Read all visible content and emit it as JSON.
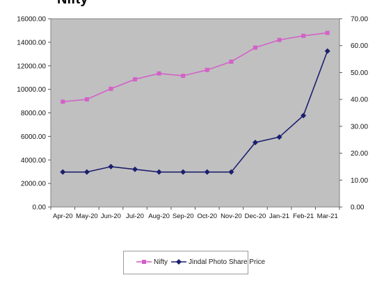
{
  "heading": "Nifty",
  "chart_data": {
    "type": "line",
    "categories": [
      "Apr-20",
      "May-20",
      "Jun-20",
      "Jul-20",
      "Aug-20",
      "Sep-20",
      "Oct-20",
      "Nov-20",
      "Dec-20",
      "Jan-21",
      "Feb-21",
      "Mar-21"
    ],
    "series": [
      {
        "name": "Nifty",
        "axis": "left",
        "color": "#d461c8",
        "values": [
          8950,
          9150,
          10050,
          10850,
          11350,
          11150,
          11650,
          12350,
          13550,
          14200,
          14550,
          14800
        ]
      },
      {
        "name": "Jindal Photo Share Price",
        "axis": "right",
        "color": "#1c1f6e",
        "values": [
          13,
          13,
          15,
          14,
          13,
          13,
          13,
          13,
          24,
          26,
          34,
          58
        ]
      }
    ],
    "y_left": {
      "min": 0,
      "max": 16000,
      "step": 2000,
      "ticks": [
        "0.00",
        "2000.00",
        "4000.00",
        "6000.00",
        "8000.00",
        "10000.00",
        "12000.00",
        "14000.00",
        "16000.00"
      ]
    },
    "y_right": {
      "min": 0,
      "max": 70,
      "step": 10,
      "ticks": [
        "0.00",
        "10.00",
        "20.00",
        "30.00",
        "40.00",
        "50.00",
        "60.00",
        "70.00"
      ]
    },
    "legend_position": "bottom",
    "plot_background": "#c0c0c0"
  }
}
